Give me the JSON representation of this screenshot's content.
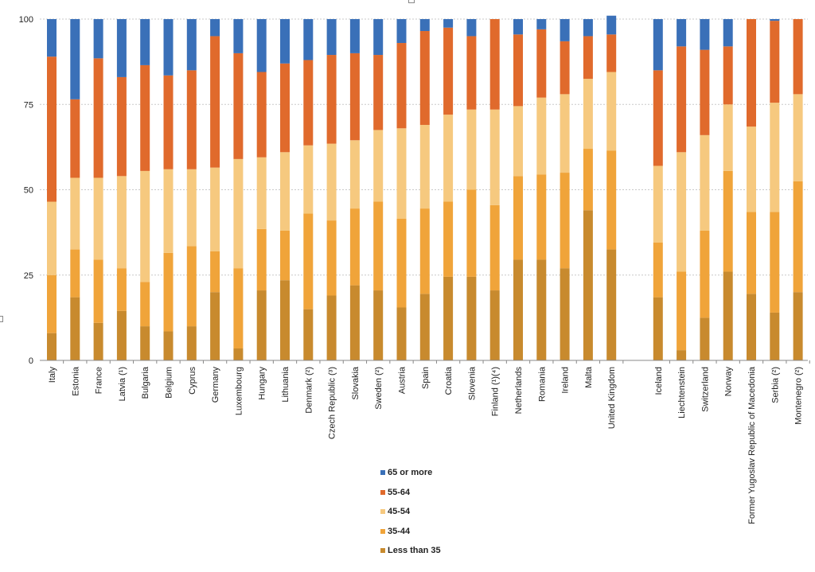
{
  "chart_data": {
    "type": "bar",
    "stacked": true,
    "ylim": [
      0,
      100
    ],
    "yticks": [
      0,
      25,
      50,
      75,
      100
    ],
    "grid": true,
    "legend_position": "bottom-center",
    "colors": {
      "Less than 35": "#c88a2e",
      "35-44": "#f0a43a",
      "45-54": "#f6c97f",
      "55-64": "#e06a2c",
      "65 or more": "#3a70b8"
    },
    "legend": [
      "65 or more",
      "55-64",
      "45-54",
      "35-44",
      "Less than 35"
    ],
    "groups": [
      [
        "Italy",
        "Estonia",
        "France",
        "Latvia (¹)",
        "Bulgaria",
        "Belgium",
        "Cyprus",
        "Germany",
        "Luxembourg",
        "Hungary",
        "Lithuania",
        "Denmark (²)",
        "Czech Republic (³)",
        "Slovakia",
        "Sweden (²)",
        "Austria",
        "Spain",
        "Croatia",
        "Slovenia",
        "Finland (¹)(⁴)",
        "Netherlands",
        "Romania",
        "Ireland",
        "Malta",
        "United Kingdom"
      ],
      [
        "Iceland",
        "Liechtenstein",
        "Switzerland",
        "Norway",
        "Former Yugoslav Republic of Macedonia",
        "Serbia (²)",
        "Montenegro (²)"
      ]
    ],
    "categories": [
      "Italy",
      "Estonia",
      "France",
      "Latvia (¹)",
      "Bulgaria",
      "Belgium",
      "Cyprus",
      "Germany",
      "Luxembourg",
      "Hungary",
      "Lithuania",
      "Denmark (²)",
      "Czech Republic (³)",
      "Slovakia",
      "Sweden (²)",
      "Austria",
      "Spain",
      "Croatia",
      "Slovenia",
      "Finland (¹)(⁴)",
      "Netherlands",
      "Romania",
      "Ireland",
      "Malta",
      "United Kingdom",
      "Iceland",
      "Liechtenstein",
      "Switzerland",
      "Norway",
      "Former Yugoslav Republic of Macedonia",
      "Serbia (²)",
      "Montenegro (²)"
    ],
    "series": [
      {
        "name": "Less than 35",
        "values": [
          8,
          18.5,
          11,
          14.5,
          10,
          8.5,
          10,
          20,
          3.5,
          20.5,
          23.5,
          15,
          19,
          22,
          20.5,
          15.5,
          19.5,
          24.5,
          24.5,
          20.5,
          29.5,
          29.5,
          27,
          44,
          32.5,
          18.5,
          3,
          12.5,
          26,
          19.5,
          14,
          20
        ]
      },
      {
        "name": "35-44",
        "values": [
          17,
          14,
          18.5,
          12.5,
          13,
          23,
          23.5,
          12,
          23.5,
          18,
          14.5,
          28,
          22,
          22.5,
          26,
          26,
          25,
          22,
          25.5,
          25,
          24.5,
          25,
          28,
          18,
          29,
          16,
          23,
          25.5,
          29.5,
          24,
          29.5,
          32.5
        ]
      },
      {
        "name": "45-54",
        "values": [
          21.5,
          21,
          24,
          27,
          32.5,
          24.5,
          22.5,
          24.5,
          32,
          21,
          23,
          20,
          22.5,
          20,
          21,
          26.5,
          24.5,
          25.5,
          23.5,
          28,
          20.5,
          22.5,
          23,
          20.5,
          23,
          22.5,
          35,
          28,
          19.5,
          25,
          32,
          25.5
        ]
      },
      {
        "name": "55-64",
        "values": [
          42.5,
          23,
          35,
          29,
          31,
          27.5,
          29,
          38.5,
          31,
          25,
          26,
          25,
          26,
          25.5,
          22,
          25,
          27.5,
          25.5,
          21.5,
          26.5,
          21,
          20,
          15.5,
          12.5,
          11,
          28,
          31,
          25,
          17,
          31.5,
          24,
          22
        ]
      },
      {
        "name": "65 or more",
        "values": [
          11,
          23.5,
          11.5,
          17,
          13.5,
          16.5,
          15,
          5,
          10,
          15.5,
          13,
          12,
          10.5,
          10,
          10.5,
          7,
          3.5,
          2.5,
          5,
          0,
          4.5,
          3,
          6.5,
          5,
          5.5,
          15,
          8,
          9,
          8,
          0,
          0.5,
          0
        ]
      }
    ]
  }
}
